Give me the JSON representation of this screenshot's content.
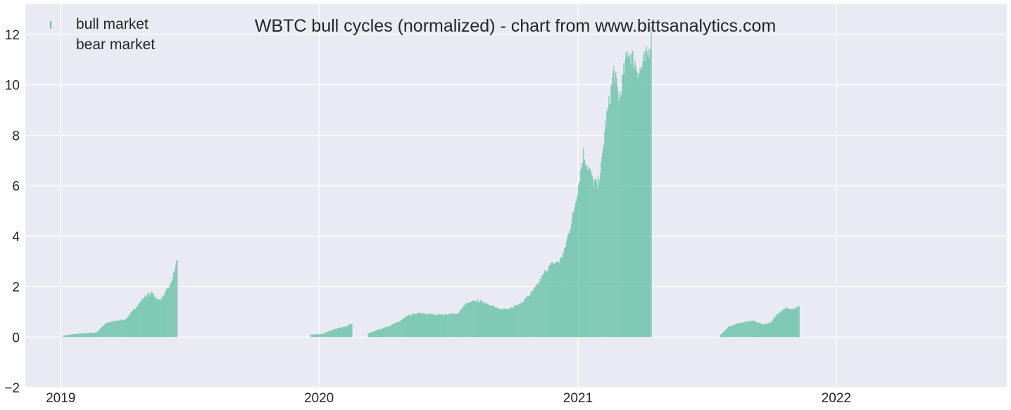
{
  "chart_data": {
    "type": "bar",
    "title": "WBTC bull cycles (normalized)  - chart from www.bittsanalytics.com",
    "xlabel": "",
    "ylabel": "",
    "x_range": [
      "2018-11-12",
      "2022-08-30"
    ],
    "ylim": [
      -2,
      13.2
    ],
    "yticks": [
      -2,
      0,
      2,
      4,
      6,
      8,
      10,
      12
    ],
    "xticks": [
      {
        "date": "2019-01-01",
        "label": "2019"
      },
      {
        "date": "2020-01-01",
        "label": "2020"
      },
      {
        "date": "2021-01-01",
        "label": "2021"
      },
      {
        "date": "2022-01-01",
        "label": "2022"
      }
    ],
    "grid": true,
    "legend_position": "top-left",
    "colors": {
      "background": "#eaeaf2",
      "grid": "#ffffff",
      "bull": "#66c2a5",
      "bear": "#fc8d62"
    },
    "series": [
      {
        "name": "bull market",
        "segments": [
          {
            "points": [
              [
                "2019-01-04",
                0.05
              ],
              [
                "2019-01-10",
                0.08
              ],
              [
                "2019-01-20",
                0.12
              ],
              [
                "2019-02-05",
                0.15
              ],
              [
                "2019-02-20",
                0.18
              ],
              [
                "2019-03-05",
                0.55
              ],
              [
                "2019-03-20",
                0.65
              ],
              [
                "2019-04-02",
                0.7
              ],
              [
                "2019-04-10",
                0.95
              ],
              [
                "2019-04-20",
                1.3
              ],
              [
                "2019-05-01",
                1.65
              ],
              [
                "2019-05-10",
                1.75
              ],
              [
                "2019-05-18",
                1.45
              ],
              [
                "2019-05-25",
                1.6
              ],
              [
                "2019-06-05",
                2.1
              ],
              [
                "2019-06-10",
                2.6
              ],
              [
                "2019-06-14",
                3.1
              ]
            ]
          },
          {
            "points": [
              [
                "2019-12-20",
                0.1
              ],
              [
                "2020-01-05",
                0.12
              ],
              [
                "2020-01-20",
                0.3
              ],
              [
                "2020-02-05",
                0.4
              ],
              [
                "2020-02-16",
                0.55
              ]
            ]
          },
          {
            "points": [
              [
                "2020-03-10",
                0.15
              ],
              [
                "2020-03-25",
                0.3
              ],
              [
                "2020-04-10",
                0.45
              ],
              [
                "2020-04-25",
                0.65
              ],
              [
                "2020-05-05",
                0.85
              ],
              [
                "2020-05-20",
                0.95
              ],
              [
                "2020-06-10",
                0.9
              ],
              [
                "2020-07-01",
                0.9
              ],
              [
                "2020-07-15",
                0.95
              ],
              [
                "2020-07-25",
                1.3
              ],
              [
                "2020-08-10",
                1.45
              ],
              [
                "2020-08-25",
                1.35
              ],
              [
                "2020-09-10",
                1.1
              ],
              [
                "2020-09-25",
                1.15
              ],
              [
                "2020-10-10",
                1.3
              ],
              [
                "2020-10-25",
                1.7
              ],
              [
                "2020-11-05",
                2.1
              ],
              [
                "2020-11-15",
                2.6
              ],
              [
                "2020-11-25",
                2.9
              ],
              [
                "2020-12-05",
                3.0
              ],
              [
                "2020-12-12",
                3.4
              ],
              [
                "2020-12-18",
                4.1
              ],
              [
                "2020-12-25",
                4.9
              ],
              [
                "2021-01-02",
                6.2
              ],
              [
                "2021-01-08",
                7.3
              ],
              [
                "2021-01-15",
                6.7
              ],
              [
                "2021-01-22",
                6.2
              ],
              [
                "2021-01-28",
                6.0
              ],
              [
                "2021-02-03",
                6.9
              ],
              [
                "2021-02-08",
                8.4
              ],
              [
                "2021-02-14",
                9.4
              ],
              [
                "2021-02-20",
                10.6
              ],
              [
                "2021-02-28",
                9.4
              ],
              [
                "2021-03-05",
                10.3
              ],
              [
                "2021-03-12",
                11.4
              ],
              [
                "2021-03-20",
                11.0
              ],
              [
                "2021-03-28",
                10.5
              ],
              [
                "2021-04-05",
                11.0
              ],
              [
                "2021-04-10",
                11.3
              ],
              [
                "2021-04-14",
                12.0
              ]
            ]
          },
          {
            "points": [
              [
                "2021-07-21",
                0.1
              ],
              [
                "2021-08-01",
                0.4
              ],
              [
                "2021-08-15",
                0.55
              ],
              [
                "2021-09-05",
                0.65
              ],
              [
                "2021-09-20",
                0.5
              ],
              [
                "2021-10-01",
                0.6
              ],
              [
                "2021-10-10",
                0.95
              ],
              [
                "2021-10-20",
                1.15
              ],
              [
                "2021-11-01",
                1.1
              ],
              [
                "2021-11-09",
                1.2
              ]
            ]
          }
        ]
      },
      {
        "name": "bear market",
        "segments": []
      }
    ]
  }
}
